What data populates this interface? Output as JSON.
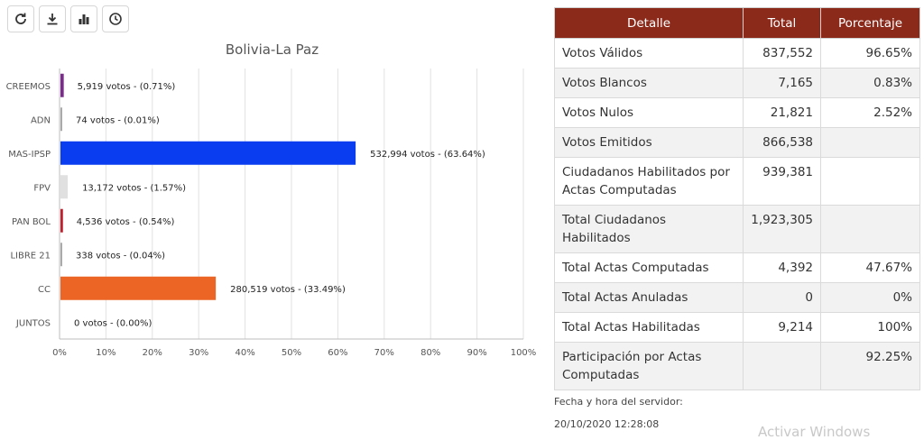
{
  "toolbar": {
    "buttons": [
      {
        "icon": "refresh-icon"
      },
      {
        "icon": "download-icon"
      },
      {
        "icon": "bar-chart-icon"
      },
      {
        "icon": "clock-icon"
      }
    ]
  },
  "chart_data": {
    "type": "bar",
    "orientation": "horizontal",
    "title": "Bolivia-La Paz",
    "categories": [
      "CREEMOS",
      "ADN",
      "MAS-IPSP",
      "FPV",
      "PAN BOL",
      "LIBRE 21",
      "CC",
      "JUNTOS"
    ],
    "values": [
      0.71,
      0.01,
      63.64,
      1.57,
      0.54,
      0.04,
      33.49,
      0.0
    ],
    "labels": [
      "5,919 votos - (0.71%)",
      "74 votos - (0.01%)",
      "532,994 votos - (63.64%)",
      "13,172 votos - (1.57%)",
      "4,536 votos - (0.54%)",
      "338 votos - (0.04%)",
      "280,519 votos - (33.49%)",
      "0 votos - (0.00%)"
    ],
    "colors": [
      "#7b2b8c",
      "#aaaaaa",
      "#0a3cf0",
      "#e0e0e0",
      "#c0212e",
      "#aaaaaa",
      "#ec6524",
      "#aaaaaa"
    ],
    "xlim": [
      0,
      100
    ],
    "xticks": [
      "0%",
      "10%",
      "20%",
      "30%",
      "40%",
      "50%",
      "60%",
      "70%",
      "80%",
      "90%",
      "100%"
    ],
    "grid": true
  },
  "table": {
    "headers": [
      "Detalle",
      "Total",
      "Porcentaje"
    ],
    "rows": [
      [
        "Votos Válidos",
        "837,552",
        "96.65%"
      ],
      [
        "Votos Blancos",
        "7,165",
        "0.83%"
      ],
      [
        "Votos Nulos",
        "21,821",
        "2.52%"
      ],
      [
        "Votos Emitidos",
        "866,538",
        ""
      ],
      [
        "Ciudadanos Habilitados por Actas Computadas",
        "939,381",
        ""
      ],
      [
        "Total Ciudadanos Habilitados",
        "1,923,305",
        ""
      ],
      [
        "Total Actas Computadas",
        "4,392",
        "47.67%"
      ],
      [
        "Total Actas Anuladas",
        "0",
        "0%"
      ],
      [
        "Total Actas Habilitadas",
        "9,214",
        "100%"
      ],
      [
        "Participación por Actas Computadas",
        "",
        "92.25%"
      ]
    ]
  },
  "server": {
    "label": "Fecha y hora del servidor:",
    "datetime": "20/10/2020 12:28:08"
  },
  "watermark": "Activar Windows"
}
